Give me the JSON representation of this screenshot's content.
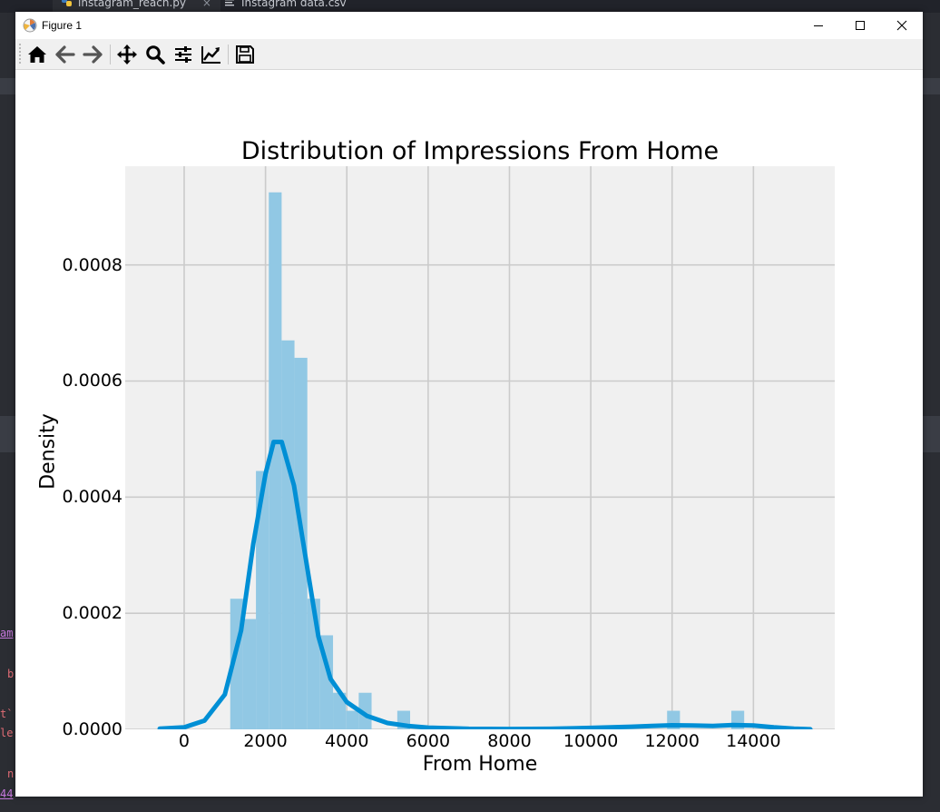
{
  "editor": {
    "tabs": [
      {
        "label": "instagram_reach.py",
        "close": "×",
        "icon": "python-file-icon"
      },
      {
        "label": "Instagram data.csv",
        "icon": "text-file-icon"
      }
    ],
    "code_fragments": [
      "am",
      "b",
      "t`",
      "le",
      "n",
      "44"
    ]
  },
  "window": {
    "title": "Figure 1",
    "controls": [
      "minimize",
      "maximize",
      "close"
    ]
  },
  "toolbar": {
    "buttons": [
      "home-icon",
      "back-arrow-icon",
      "forward-arrow-icon",
      "pan-icon",
      "zoom-icon",
      "configure-subplots-icon",
      "edit-axis-icon",
      "save-icon"
    ]
  },
  "chart_data": {
    "type": "bar",
    "title": "Distribution of Impressions From Home",
    "xlabel": "From Home",
    "ylabel": "Density",
    "xlim": [
      -1450,
      16000
    ],
    "ylim": [
      0,
      0.00097
    ],
    "xticks": [
      "0",
      "2000",
      "4000",
      "6000",
      "8000",
      "10000",
      "12000",
      "14000"
    ],
    "yticks": [
      "0.0000",
      "0.0002",
      "0.0004",
      "0.0006",
      "0.0008"
    ],
    "grid": true,
    "style": "fivethirtyeight",
    "histogram": {
      "bin_width": 316,
      "bins": [
        {
          "x0": 1133,
          "density": 0.000225
        },
        {
          "x0": 1449,
          "density": 0.00019
        },
        {
          "x0": 1765,
          "density": 0.000445
        },
        {
          "x0": 2081,
          "density": 0.000925
        },
        {
          "x0": 2397,
          "density": 0.00067
        },
        {
          "x0": 2713,
          "density": 0.00064
        },
        {
          "x0": 3029,
          "density": 0.000225
        },
        {
          "x0": 3345,
          "density": 0.000162
        },
        {
          "x0": 3661,
          "density": 6.3e-05
        },
        {
          "x0": 3977,
          "density": 3.2e-05
        },
        {
          "x0": 4293,
          "density": 6.3e-05
        },
        {
          "x0": 5241,
          "density": 3.2e-05
        },
        {
          "x0": 11877,
          "density": 3.2e-05
        },
        {
          "x0": 13457,
          "density": 3.2e-05
        }
      ],
      "color": "#91c8e4"
    },
    "kde": {
      "color": "#008fd5",
      "x": [
        -600,
        0,
        500,
        1000,
        1400,
        1700,
        2000,
        2200,
        2400,
        2700,
        3000,
        3300,
        3600,
        4000,
        4500,
        5000,
        5500,
        6000,
        7000,
        8000,
        9000,
        10000,
        11000,
        11500,
        12000,
        12500,
        13000,
        13500,
        14000,
        14500,
        15000,
        15400
      ],
      "y": [
        1.2e-06,
        3.5e-06,
        1.5e-05,
        6e-05,
        0.00017,
        0.00032,
        0.00044,
        0.000495,
        0.000495,
        0.00042,
        0.00029,
        0.00016,
        8.7e-05,
        4.7e-05,
        2.3e-05,
        1.1e-05,
        6e-06,
        3e-06,
        1e-06,
        7e-07,
        1e-06,
        2.5e-06,
        4.5e-06,
        6e-06,
        7e-06,
        6.5e-06,
        6e-06,
        7.5e-06,
        6.5e-06,
        3.5e-06,
        1.2e-06,
        2e-07
      ]
    }
  }
}
